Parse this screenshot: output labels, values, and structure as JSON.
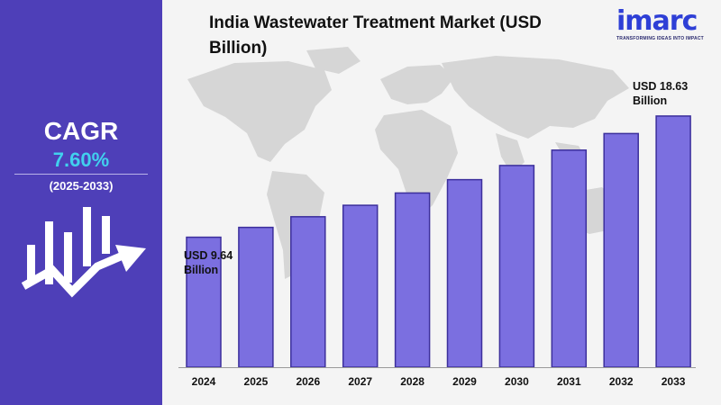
{
  "title": "India Wastewater Treatment Market (USD Billion)",
  "cagr": {
    "label": "CAGR",
    "value": "7.60%",
    "period": "(2025-2033)"
  },
  "logo": {
    "word": "imarc",
    "tagline": "TRANSFORMING IDEAS INTO IMPACT"
  },
  "callouts": {
    "first": {
      "line1": "USD 9.64",
      "line2": "Billion"
    },
    "last": {
      "line1": "USD 18.63",
      "line2": "Billion"
    }
  },
  "colors": {
    "left_panel": "#4e3fb8",
    "cagr_value": "#41d1ee",
    "bar_fill": "#7b6fe0",
    "bar_stroke": "#3c2f9c",
    "map": "#d6d6d6"
  },
  "icons": [
    "growth-chart-arrow-icon",
    "world-map-icon"
  ],
  "chart_data": {
    "type": "bar",
    "title": "India Wastewater Treatment Market (USD Billion)",
    "categories": [
      "2024",
      "2025",
      "2026",
      "2027",
      "2028",
      "2029",
      "2030",
      "2031",
      "2032",
      "2033"
    ],
    "values": [
      9.64,
      10.37,
      11.16,
      12.01,
      12.92,
      13.91,
      14.96,
      16.1,
      17.33,
      18.63
    ],
    "xlabel": "",
    "ylabel": "",
    "ylim": [
      0,
      20
    ],
    "grid": false,
    "legend": "none"
  }
}
